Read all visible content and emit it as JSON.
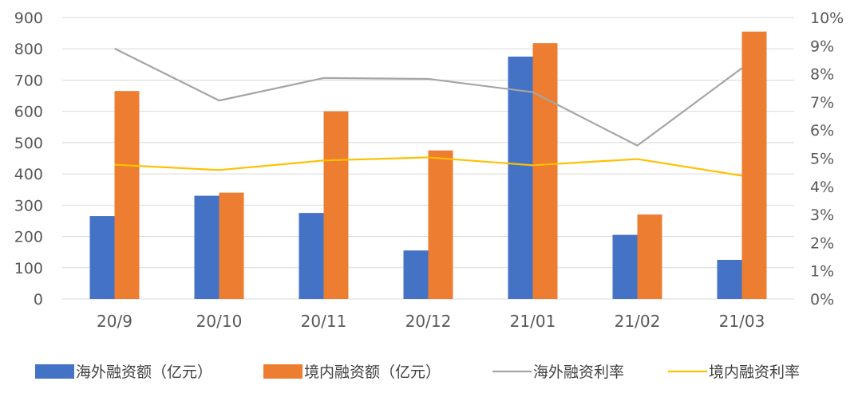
{
  "chart_data": {
    "type": "bar",
    "categories": [
      "20/9",
      "20/10",
      "20/11",
      "20/12",
      "21/01",
      "21/02",
      "21/03"
    ],
    "series": [
      {
        "name": "海外融资额（亿元）",
        "kind": "bar",
        "axis": "left",
        "color": "#4472C4",
        "values": [
          265,
          330,
          275,
          155,
          775,
          205,
          125
        ]
      },
      {
        "name": "境内融资额（亿元）",
        "kind": "bar",
        "axis": "left",
        "color": "#ED7D31",
        "values": [
          665,
          340,
          600,
          475,
          818,
          270,
          855
        ]
      },
      {
        "name": "海外融资利率",
        "kind": "line",
        "axis": "right",
        "color": "#A5A5A5",
        "values": [
          0.089,
          0.0705,
          0.0785,
          0.0782,
          0.0735,
          0.0545,
          0.082
        ]
      },
      {
        "name": "境内融资利率",
        "kind": "line",
        "axis": "right",
        "color": "#FFC000",
        "values": [
          0.0477,
          0.0458,
          0.0492,
          0.0503,
          0.0475,
          0.0497,
          0.0438
        ]
      }
    ],
    "ylim": [
      0,
      900
    ],
    "y_ticks": [
      "0",
      "100",
      "200",
      "300",
      "400",
      "500",
      "600",
      "700",
      "800",
      "900"
    ],
    "y2lim": [
      0,
      0.1
    ],
    "y2_ticks": [
      "0%",
      "1%",
      "2%",
      "3%",
      "4%",
      "5%",
      "6%",
      "7%",
      "8%",
      "9%",
      "10%"
    ],
    "grid": true,
    "legend_position": "bottom"
  }
}
